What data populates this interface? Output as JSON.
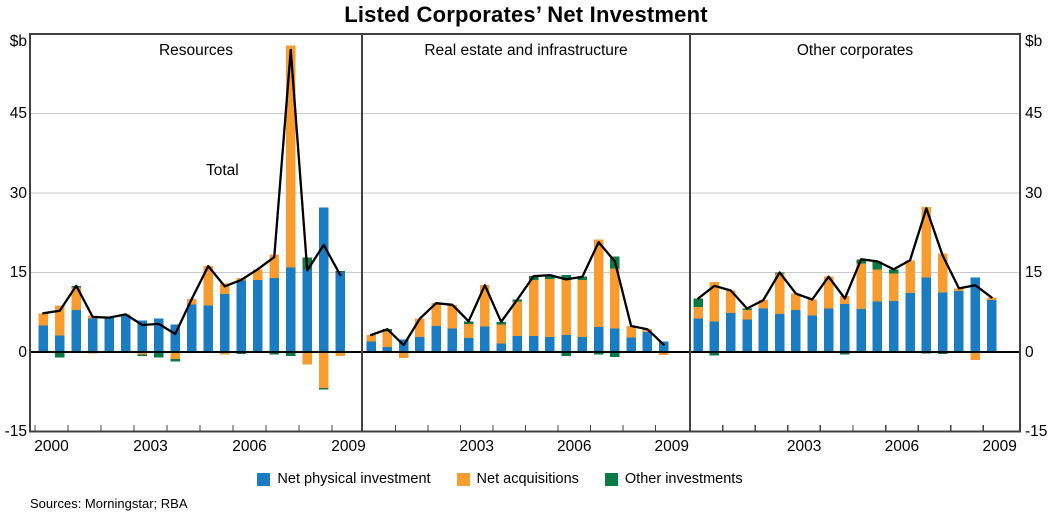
{
  "chart_data": {
    "type": "bar",
    "subtype": "stacked-bars-with-total-line",
    "title": "Listed Corporates’ Net Investment",
    "unit_label": "$b",
    "line_label": "Total",
    "sources": "Sources: Morningstar; RBA",
    "y_axis": {
      "min": -15,
      "max": 60,
      "ticks": [
        45,
        30,
        15,
        0,
        -15
      ],
      "gridlines": [
        45,
        30,
        15
      ]
    },
    "colors": {
      "blue": "#1A7DC4",
      "orange": "#F89C30",
      "green": "#0A7A45",
      "line": "#000000",
      "grid": "#C9CACB",
      "frame": "#404040"
    },
    "legend": [
      {
        "key": "blue",
        "name": "Net physical investment"
      },
      {
        "key": "orange",
        "name": "Net acquisitions"
      },
      {
        "key": "green",
        "name": "Other investments"
      }
    ],
    "categories": [
      "2000 H1",
      "2000 H2",
      "2001 H1",
      "2001 H2",
      "2002 H1",
      "2002 H2",
      "2003 H1",
      "2003 H2",
      "2004 H1",
      "2004 H2",
      "2005 H1",
      "2005 H2",
      "2006 H1",
      "2006 H2",
      "2007 H1",
      "2007 H2",
      "2008 H1",
      "2008 H2",
      "2009 H1"
    ],
    "panels": [
      {
        "title": "Resources",
        "x_labels": [
          {
            "text": "2000",
            "year": 0
          },
          {
            "text": "2003",
            "year": 3
          },
          {
            "text": "2006",
            "year": 6
          },
          {
            "text": "2009",
            "year": 9
          }
        ],
        "bars": [
          [
            {
              "c": "blue",
              "v": 5.0
            },
            {
              "c": "orange",
              "v": 2.3
            }
          ],
          [
            {
              "c": "blue",
              "v": 3.1
            },
            {
              "c": "orange",
              "v": 5.7
            },
            {
              "c": "green",
              "v": -1.0
            }
          ],
          [
            {
              "c": "blue",
              "v": 7.9
            },
            {
              "c": "orange",
              "v": 4.3
            },
            {
              "c": "green",
              "v": 0.3
            }
          ],
          [
            {
              "c": "blue",
              "v": 6.3
            },
            {
              "c": "orange",
              "v": 0.6
            },
            {
              "c": "orange",
              "v": -0.3
            }
          ],
          [
            {
              "c": "blue",
              "v": 6.5
            }
          ],
          [
            {
              "c": "blue",
              "v": 6.8
            },
            {
              "c": "orange",
              "v": 0.3
            }
          ],
          [
            {
              "c": "blue",
              "v": 5.9
            },
            {
              "c": "orange",
              "v": -0.5
            },
            {
              "c": "green",
              "v": -0.3
            }
          ],
          [
            {
              "c": "blue",
              "v": 6.3
            },
            {
              "c": "green",
              "v": -1.0
            }
          ],
          [
            {
              "c": "blue",
              "v": 5.2
            },
            {
              "c": "orange",
              "v": -1.3
            },
            {
              "c": "green",
              "v": -0.5
            }
          ],
          [
            {
              "c": "blue",
              "v": 9.0
            },
            {
              "c": "orange",
              "v": 1.0
            }
          ],
          [
            {
              "c": "blue",
              "v": 8.8
            },
            {
              "c": "orange",
              "v": 7.4
            }
          ],
          [
            {
              "c": "blue",
              "v": 10.9
            },
            {
              "c": "orange",
              "v": 2.0
            },
            {
              "c": "orange",
              "v": -0.5
            }
          ],
          [
            {
              "c": "blue",
              "v": 13.5
            },
            {
              "c": "orange",
              "v": 0.5
            },
            {
              "c": "green",
              "v": -0.4
            }
          ],
          [
            {
              "c": "blue",
              "v": 13.6
            },
            {
              "c": "orange",
              "v": 2.0
            }
          ],
          [
            {
              "c": "blue",
              "v": 14.0
            },
            {
              "c": "orange",
              "v": 4.4
            },
            {
              "c": "green",
              "v": -0.5
            }
          ],
          [
            {
              "c": "blue",
              "v": 15.9
            },
            {
              "c": "orange",
              "v": 41.9
            },
            {
              "c": "green",
              "v": -0.8
            }
          ],
          [
            {
              "c": "blue",
              "v": 15.6
            },
            {
              "c": "green",
              "v": 2.2
            },
            {
              "c": "orange",
              "v": -2.4
            }
          ],
          [
            {
              "c": "blue",
              "v": 27.3
            },
            {
              "c": "orange",
              "v": -6.8
            },
            {
              "c": "green",
              "v": -0.3
            }
          ],
          [
            {
              "c": "blue",
              "v": 15.0
            },
            {
              "c": "green",
              "v": 0.3
            },
            {
              "c": "orange",
              "v": -0.8
            }
          ]
        ]
      },
      {
        "title": "Real estate and infrastructure",
        "x_labels": [
          {
            "text": "2003",
            "year": 3
          },
          {
            "text": "2006",
            "year": 6
          },
          {
            "text": "2009",
            "year": 9
          }
        ],
        "bars": [
          [
            {
              "c": "blue",
              "v": 2.0
            },
            {
              "c": "orange",
              "v": 1.2
            }
          ],
          [
            {
              "c": "blue",
              "v": 0.9
            },
            {
              "c": "orange",
              "v": 3.0
            },
            {
              "c": "green",
              "v": 0.4
            }
          ],
          [
            {
              "c": "blue",
              "v": 2.4
            },
            {
              "c": "orange",
              "v": -1.1
            }
          ],
          [
            {
              "c": "blue",
              "v": 2.8
            },
            {
              "c": "orange",
              "v": 3.5
            }
          ],
          [
            {
              "c": "blue",
              "v": 4.9
            },
            {
              "c": "orange",
              "v": 4.3
            }
          ],
          [
            {
              "c": "blue",
              "v": 4.4
            },
            {
              "c": "orange",
              "v": 4.5
            }
          ],
          [
            {
              "c": "blue",
              "v": 2.6
            },
            {
              "c": "orange",
              "v": 2.7
            },
            {
              "c": "green",
              "v": 0.5
            }
          ],
          [
            {
              "c": "blue",
              "v": 4.8
            },
            {
              "c": "orange",
              "v": 7.8
            }
          ],
          [
            {
              "c": "blue",
              "v": 1.6
            },
            {
              "c": "orange",
              "v": 3.6
            },
            {
              "c": "green",
              "v": 0.5
            }
          ],
          [
            {
              "c": "blue",
              "v": 3.0
            },
            {
              "c": "orange",
              "v": 6.5
            },
            {
              "c": "green",
              "v": 0.4
            }
          ],
          [
            {
              "c": "blue",
              "v": 3.0
            },
            {
              "c": "orange",
              "v": 10.6
            },
            {
              "c": "green",
              "v": 0.7
            }
          ],
          [
            {
              "c": "blue",
              "v": 2.8
            },
            {
              "c": "orange",
              "v": 11.0
            },
            {
              "c": "green",
              "v": 0.7
            }
          ],
          [
            {
              "c": "blue",
              "v": 3.2
            },
            {
              "c": "orange",
              "v": 10.6
            },
            {
              "c": "green",
              "v": 0.7
            },
            {
              "c": "green",
              "v": -0.8
            }
          ],
          [
            {
              "c": "blue",
              "v": 2.8
            },
            {
              "c": "orange",
              "v": 10.8
            },
            {
              "c": "green",
              "v": 0.6
            }
          ],
          [
            {
              "c": "blue",
              "v": 4.7
            },
            {
              "c": "orange",
              "v": 16.5
            },
            {
              "c": "green",
              "v": -0.5
            }
          ],
          [
            {
              "c": "blue",
              "v": 4.4
            },
            {
              "c": "orange",
              "v": 11.4
            },
            {
              "c": "green",
              "v": 2.2
            },
            {
              "c": "green",
              "v": -0.9
            }
          ],
          [
            {
              "c": "blue",
              "v": 2.7
            },
            {
              "c": "orange",
              "v": 2.2
            }
          ],
          [
            {
              "c": "blue",
              "v": 3.8
            },
            {
              "c": "orange",
              "v": 0.5
            }
          ],
          [
            {
              "c": "blue",
              "v": 2.0
            },
            {
              "c": "orange",
              "v": -0.6
            }
          ]
        ]
      },
      {
        "title": "Other corporates",
        "x_labels": [
          {
            "text": "2003",
            "year": 3
          },
          {
            "text": "2006",
            "year": 6
          },
          {
            "text": "2009",
            "year": 9
          }
        ],
        "bars": [
          [
            {
              "c": "blue",
              "v": 6.3
            },
            {
              "c": "orange",
              "v": 2.2
            },
            {
              "c": "green",
              "v": 1.6
            }
          ],
          [
            {
              "c": "blue",
              "v": 5.8
            },
            {
              "c": "orange",
              "v": 7.4
            },
            {
              "c": "green",
              "v": -0.7
            }
          ],
          [
            {
              "c": "blue",
              "v": 7.4
            },
            {
              "c": "orange",
              "v": 4.2
            }
          ],
          [
            {
              "c": "blue",
              "v": 6.1
            },
            {
              "c": "orange",
              "v": 1.8
            },
            {
              "c": "green",
              "v": 0.3
            }
          ],
          [
            {
              "c": "blue",
              "v": 8.2
            },
            {
              "c": "orange",
              "v": 1.6
            }
          ],
          [
            {
              "c": "blue",
              "v": 7.2
            },
            {
              "c": "orange",
              "v": 7.6
            },
            {
              "c": "green",
              "v": 0.2
            }
          ],
          [
            {
              "c": "blue",
              "v": 7.9
            },
            {
              "c": "orange",
              "v": 3.1
            }
          ],
          [
            {
              "c": "blue",
              "v": 6.9
            },
            {
              "c": "orange",
              "v": 3.0
            }
          ],
          [
            {
              "c": "blue",
              "v": 8.2
            },
            {
              "c": "orange",
              "v": 6.0
            }
          ],
          [
            {
              "c": "blue",
              "v": 9.1
            },
            {
              "c": "orange",
              "v": 1.5
            },
            {
              "c": "green",
              "v": -0.5
            }
          ],
          [
            {
              "c": "blue",
              "v": 8.1
            },
            {
              "c": "orange",
              "v": 8.6
            },
            {
              "c": "green",
              "v": 0.8
            }
          ],
          [
            {
              "c": "blue",
              "v": 9.5
            },
            {
              "c": "orange",
              "v": 6.1
            },
            {
              "c": "green",
              "v": 1.5
            }
          ],
          [
            {
              "c": "blue",
              "v": 9.6
            },
            {
              "c": "orange",
              "v": 5.2
            },
            {
              "c": "green",
              "v": 0.8
            }
          ],
          [
            {
              "c": "blue",
              "v": 11.1
            },
            {
              "c": "orange",
              "v": 6.2
            }
          ],
          [
            {
              "c": "blue",
              "v": 14.1
            },
            {
              "c": "orange",
              "v": 13.3
            },
            {
              "c": "green",
              "v": -0.3
            }
          ],
          [
            {
              "c": "blue",
              "v": 11.2
            },
            {
              "c": "orange",
              "v": 7.4
            },
            {
              "c": "green",
              "v": -0.4
            }
          ],
          [
            {
              "c": "blue",
              "v": 11.5
            },
            {
              "c": "orange",
              "v": 0.5
            }
          ],
          [
            {
              "c": "blue",
              "v": 14.1
            },
            {
              "c": "orange",
              "v": -1.5
            }
          ],
          [
            {
              "c": "blue",
              "v": 9.8
            },
            {
              "c": "orange",
              "v": 0.5
            }
          ]
        ]
      }
    ]
  }
}
